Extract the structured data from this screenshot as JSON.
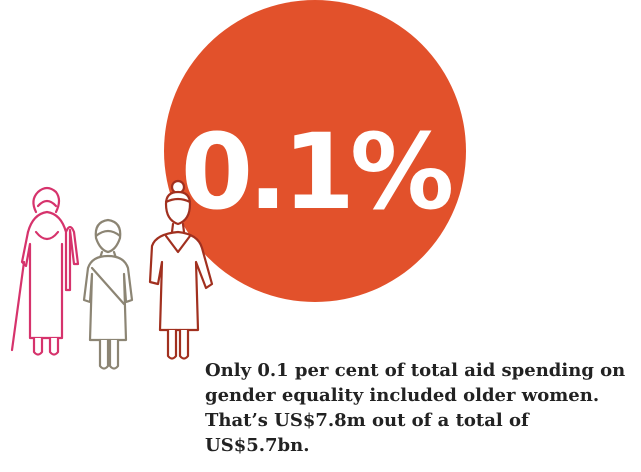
{
  "stat": {
    "value": "0.1%",
    "circle_color": "#E2512B"
  },
  "caption": "Only 0.1 per cent of total aid spending on gender equality included older women. That’s US$7.8m out of a total of US$5.7bn.",
  "colors": {
    "figure_left": "#D6336C",
    "figure_middle": "#8C8574",
    "figure_right": "#A1301F"
  },
  "icons": [
    "woman-with-cane-icon",
    "woman-with-headscarf-icon",
    "woman-with-bun-icon"
  ]
}
